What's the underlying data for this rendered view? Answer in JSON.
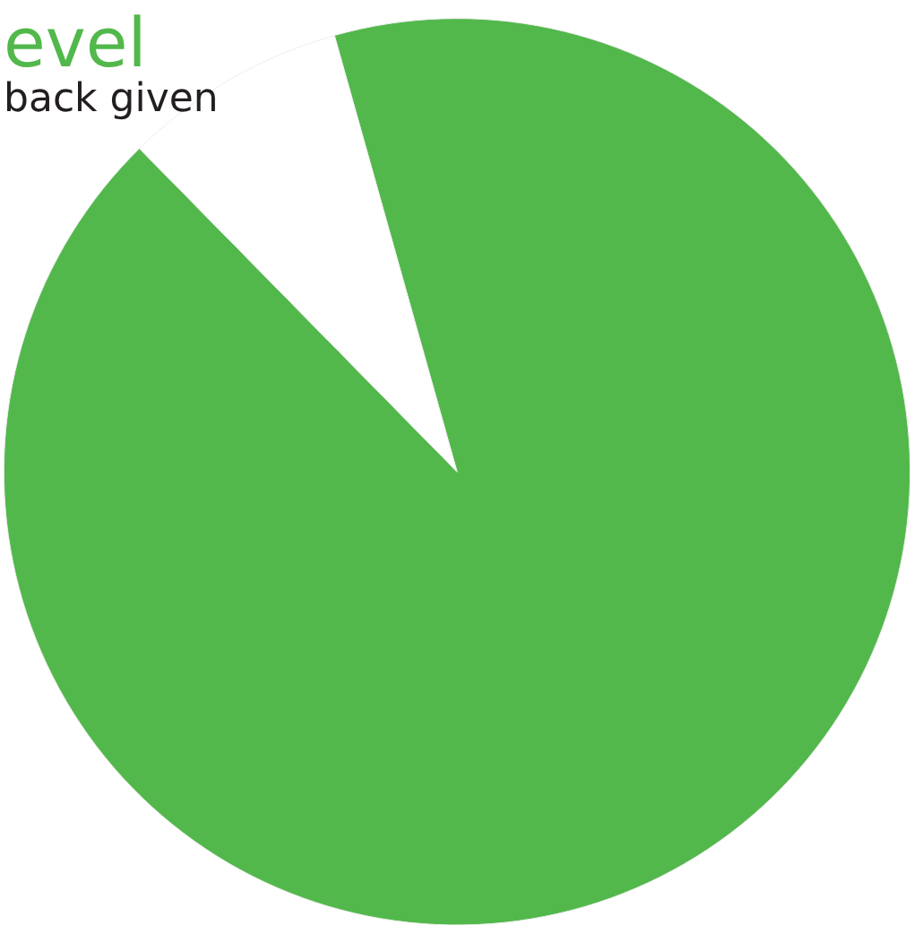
{
  "chart_data": {
    "type": "pie",
    "title": "evel",
    "annotations": [
      "back given"
    ],
    "categories": [
      null,
      null
    ],
    "values": [
      92,
      8
    ],
    "colors": [
      "#52b84b",
      "#ffffff"
    ],
    "legend": false
  }
}
